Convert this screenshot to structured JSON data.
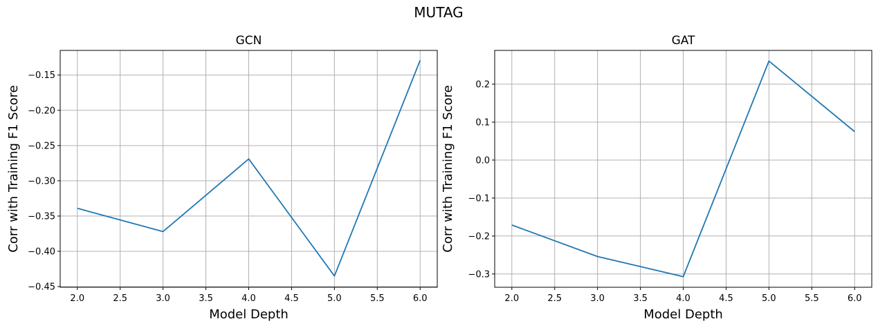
{
  "figure": {
    "suptitle": "MUTAG"
  },
  "chart_data": [
    {
      "type": "line",
      "title": "GCN",
      "xlabel": "Model Depth",
      "ylabel": "Corr with Training F1 Score",
      "x": [
        2.0,
        3.0,
        4.0,
        5.0,
        6.0
      ],
      "series": [
        {
          "values": [
            -0.339,
            -0.372,
            -0.269,
            -0.435,
            -0.129
          ]
        }
      ],
      "xlim": [
        1.8,
        6.2
      ],
      "ylim": [
        -0.451,
        -0.115
      ],
      "xticks": [
        2.0,
        2.5,
        3.0,
        3.5,
        4.0,
        4.5,
        5.0,
        5.5,
        6.0
      ],
      "xtick_labels": [
        "2.0",
        "2.5",
        "3.0",
        "3.5",
        "4.0",
        "4.5",
        "5.0",
        "5.5",
        "6.0"
      ],
      "yticks": [
        -0.45,
        -0.4,
        -0.35,
        -0.3,
        -0.25,
        -0.2,
        -0.15
      ],
      "ytick_labels": [
        "−0.45",
        "−0.40",
        "−0.35",
        "−0.30",
        "−0.25",
        "−0.20",
        "−0.15"
      ],
      "grid": true,
      "color": "#1f77b4"
    },
    {
      "type": "line",
      "title": "GAT",
      "xlabel": "Model Depth",
      "ylabel": "Corr with Training F1 Score",
      "x": [
        2.0,
        3.0,
        4.0,
        5.0,
        6.0
      ],
      "series": [
        {
          "values": [
            -0.171,
            -0.254,
            -0.307,
            0.261,
            0.075
          ]
        }
      ],
      "xlim": [
        1.8,
        6.2
      ],
      "ylim": [
        -0.335,
        0.289
      ],
      "xticks": [
        2.0,
        2.5,
        3.0,
        3.5,
        4.0,
        4.5,
        5.0,
        5.5,
        6.0
      ],
      "xtick_labels": [
        "2.0",
        "2.5",
        "3.0",
        "3.5",
        "4.0",
        "4.5",
        "5.0",
        "5.5",
        "6.0"
      ],
      "yticks": [
        -0.3,
        -0.2,
        -0.1,
        0.0,
        0.1,
        0.2
      ],
      "ytick_labels": [
        "−0.3",
        "−0.2",
        "−0.1",
        "0.0",
        "0.1",
        "0.2"
      ],
      "grid": true,
      "color": "#1f77b4"
    }
  ]
}
